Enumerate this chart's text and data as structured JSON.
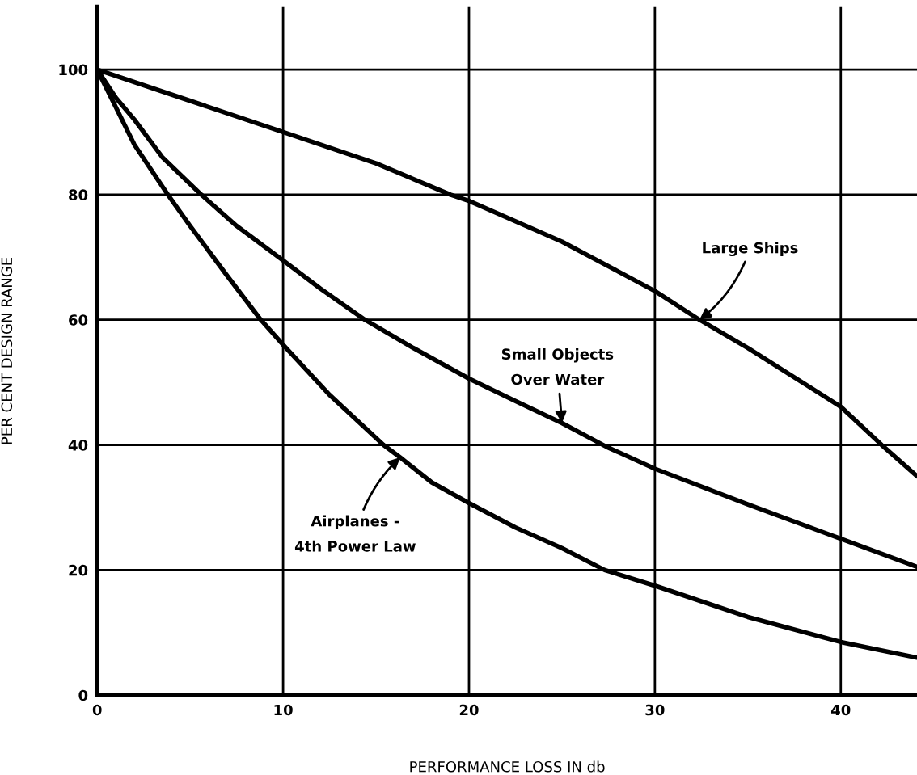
{
  "chart_data": {
    "type": "line",
    "xlabel": "PERFORMANCE LOSS IN db",
    "ylabel": "PER CENT DESIGN RANGE",
    "xlim": [
      0,
      44.1
    ],
    "ylim": [
      0,
      110
    ],
    "xticks": [
      0,
      10,
      20,
      30,
      40
    ],
    "yticks": [
      0,
      20,
      40,
      60,
      80,
      100
    ],
    "grid": true,
    "marker": "none",
    "line_style": "solid",
    "series": [
      {
        "color": "#000000",
        "x": [
          0,
          5,
          10,
          15,
          19,
          20,
          25,
          30,
          32.4,
          35,
          40,
          42.2,
          44.1
        ],
        "values": [
          100,
          95,
          90,
          85,
          80,
          79,
          72.5,
          64.6,
          60,
          55.5,
          46.1,
          40,
          35
        ]
      },
      {
        "color": "#000000",
        "x": [
          0,
          1,
          2,
          3.5,
          5.6,
          7.5,
          10,
          12,
          14.4,
          17,
          20,
          22.5,
          25,
          27.4,
          30,
          35,
          40,
          44.1
        ],
        "values": [
          100,
          95.5,
          92,
          86,
          80,
          75,
          69.5,
          65,
          60,
          55.5,
          50.6,
          47,
          43.5,
          39.7,
          36.2,
          30.5,
          25,
          20.5
        ]
      },
      {
        "color": "#000000",
        "x": [
          0,
          1,
          2,
          3.8,
          5,
          7,
          8.8,
          10,
          12.5,
          15.4,
          16.3,
          18,
          20,
          22.5,
          25,
          27.3,
          30,
          35,
          40,
          44.1
        ],
        "values": [
          100,
          94,
          88,
          80,
          75,
          67,
          60,
          56,
          48,
          40,
          38,
          34,
          30.7,
          26.8,
          23.5,
          20,
          17.5,
          12.5,
          8.5,
          6
        ]
      }
    ],
    "annotations": [
      {
        "text": "Large Ships",
        "x": 32.4,
        "y": 60
      },
      {
        "text": "Small Objects\nOver Water",
        "x": 25,
        "y": 43.5
      },
      {
        "text": "Airplanes -\n4th Power Law",
        "x": 16.3,
        "y": 38
      }
    ]
  }
}
